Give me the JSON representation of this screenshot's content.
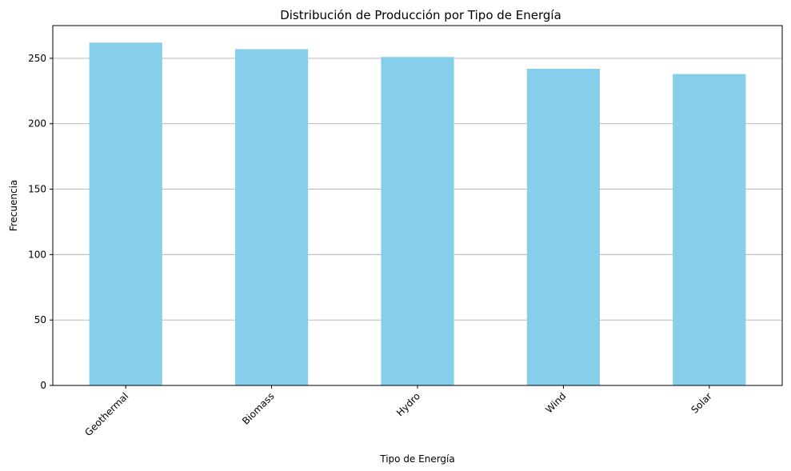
{
  "chart_data": {
    "type": "bar",
    "title": "Distribución de Producción por Tipo de Energía",
    "xlabel": "Tipo de Energía",
    "ylabel": "Frecuencia",
    "categories": [
      "Geothermal",
      "Biomass",
      "Hydro",
      "Wind",
      "Solar"
    ],
    "values": [
      262,
      257,
      251,
      242,
      238
    ],
    "ylim": [
      0,
      275
    ],
    "yticks": [
      0,
      50,
      100,
      150,
      200,
      250
    ],
    "ytick_labels": [
      "0",
      "50",
      "100",
      "150",
      "200",
      "250"
    ],
    "grid": "y-axis only",
    "bar_color": "#87ceeb",
    "xtick_rotation": 45
  }
}
